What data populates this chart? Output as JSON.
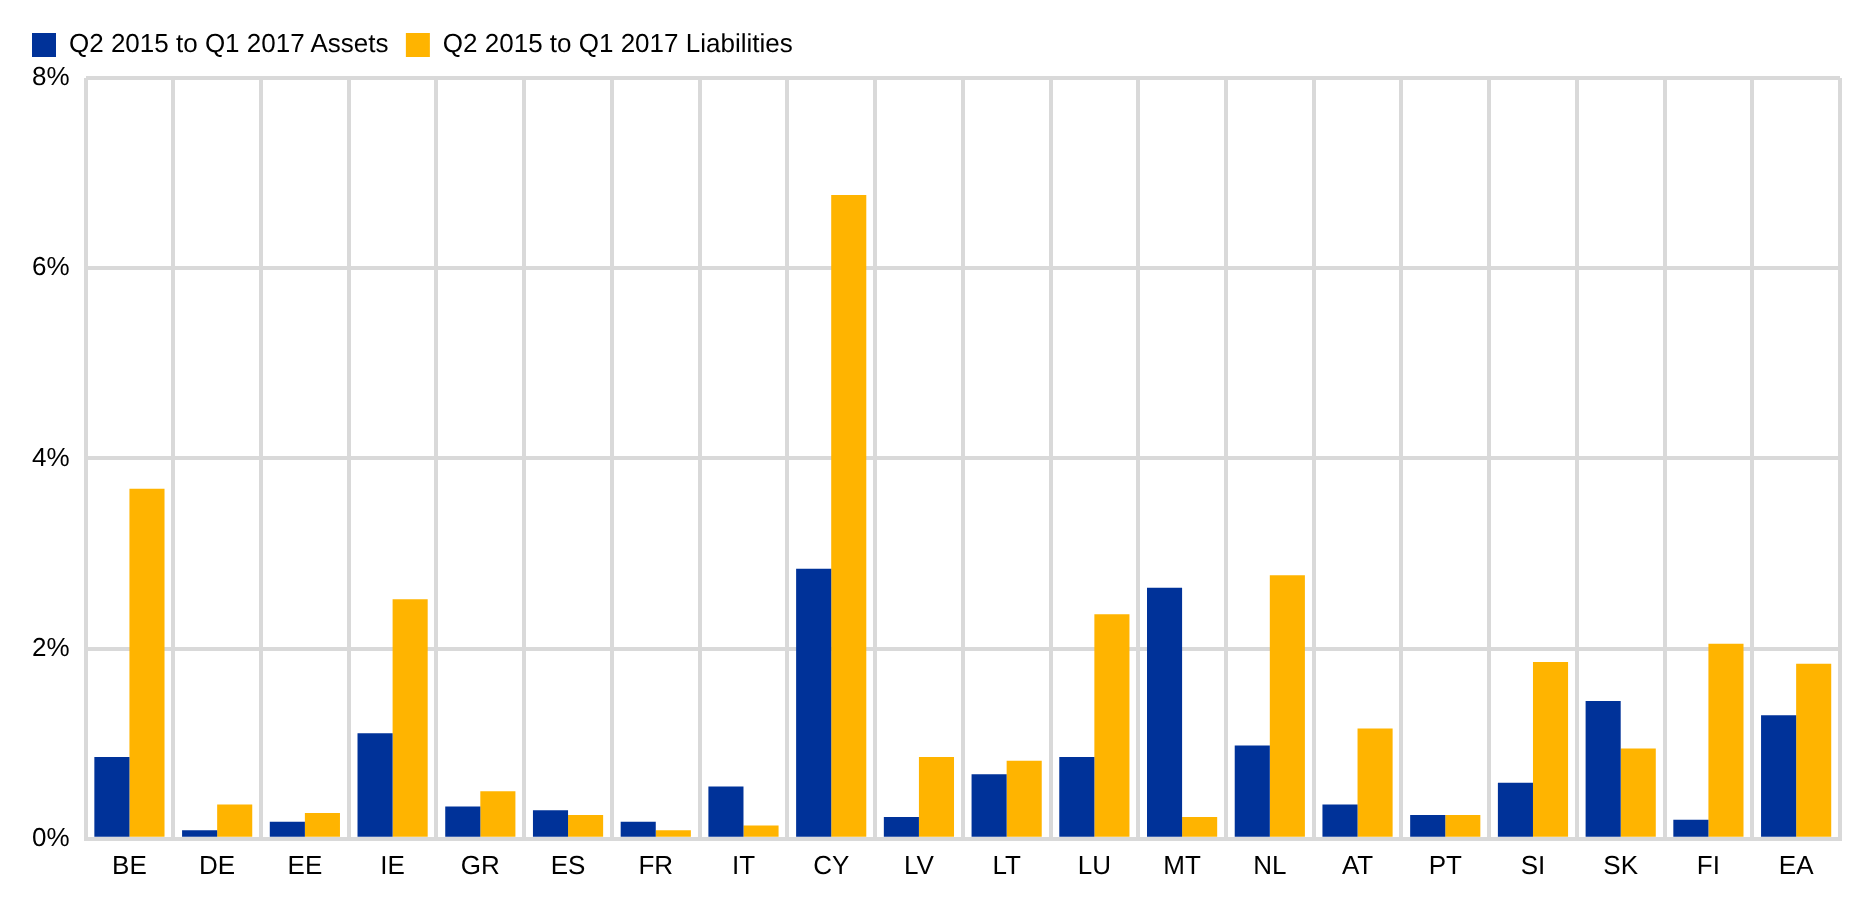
{
  "chart_data": {
    "type": "bar",
    "categories": [
      "BE",
      "DE",
      "EE",
      "IE",
      "GR",
      "ES",
      "FR",
      "IT",
      "CY",
      "LV",
      "LT",
      "LU",
      "MT",
      "NL",
      "AT",
      "PT",
      "SI",
      "SK",
      "FI",
      "EA"
    ],
    "series": [
      {
        "name": "Q2 2015 to Q1 2017 Assets",
        "color": "#003299",
        "values": [
          0.86,
          0.09,
          0.18,
          1.11,
          0.34,
          0.3,
          0.18,
          0.55,
          2.84,
          0.23,
          0.68,
          0.86,
          2.64,
          0.98,
          0.36,
          0.25,
          0.59,
          1.45,
          0.2,
          1.3
        ]
      },
      {
        "name": "Q2 2015 to Q1 2017 Liabilities",
        "color": "#ffb400",
        "values": [
          3.68,
          0.36,
          0.27,
          2.52,
          0.5,
          0.25,
          0.09,
          0.14,
          6.77,
          0.86,
          0.82,
          2.36,
          0.23,
          2.77,
          1.16,
          0.25,
          1.86,
          0.95,
          2.05,
          1.84
        ]
      }
    ],
    "ylim": [
      0,
      8
    ],
    "yticks": [
      {
        "value": 0,
        "label": "0%"
      },
      {
        "value": 2,
        "label": "2%"
      },
      {
        "value": 4,
        "label": "4%"
      },
      {
        "value": 6,
        "label": "6%"
      },
      {
        "value": 8,
        "label": "8%"
      }
    ],
    "grid": true,
    "legend": "top left"
  }
}
